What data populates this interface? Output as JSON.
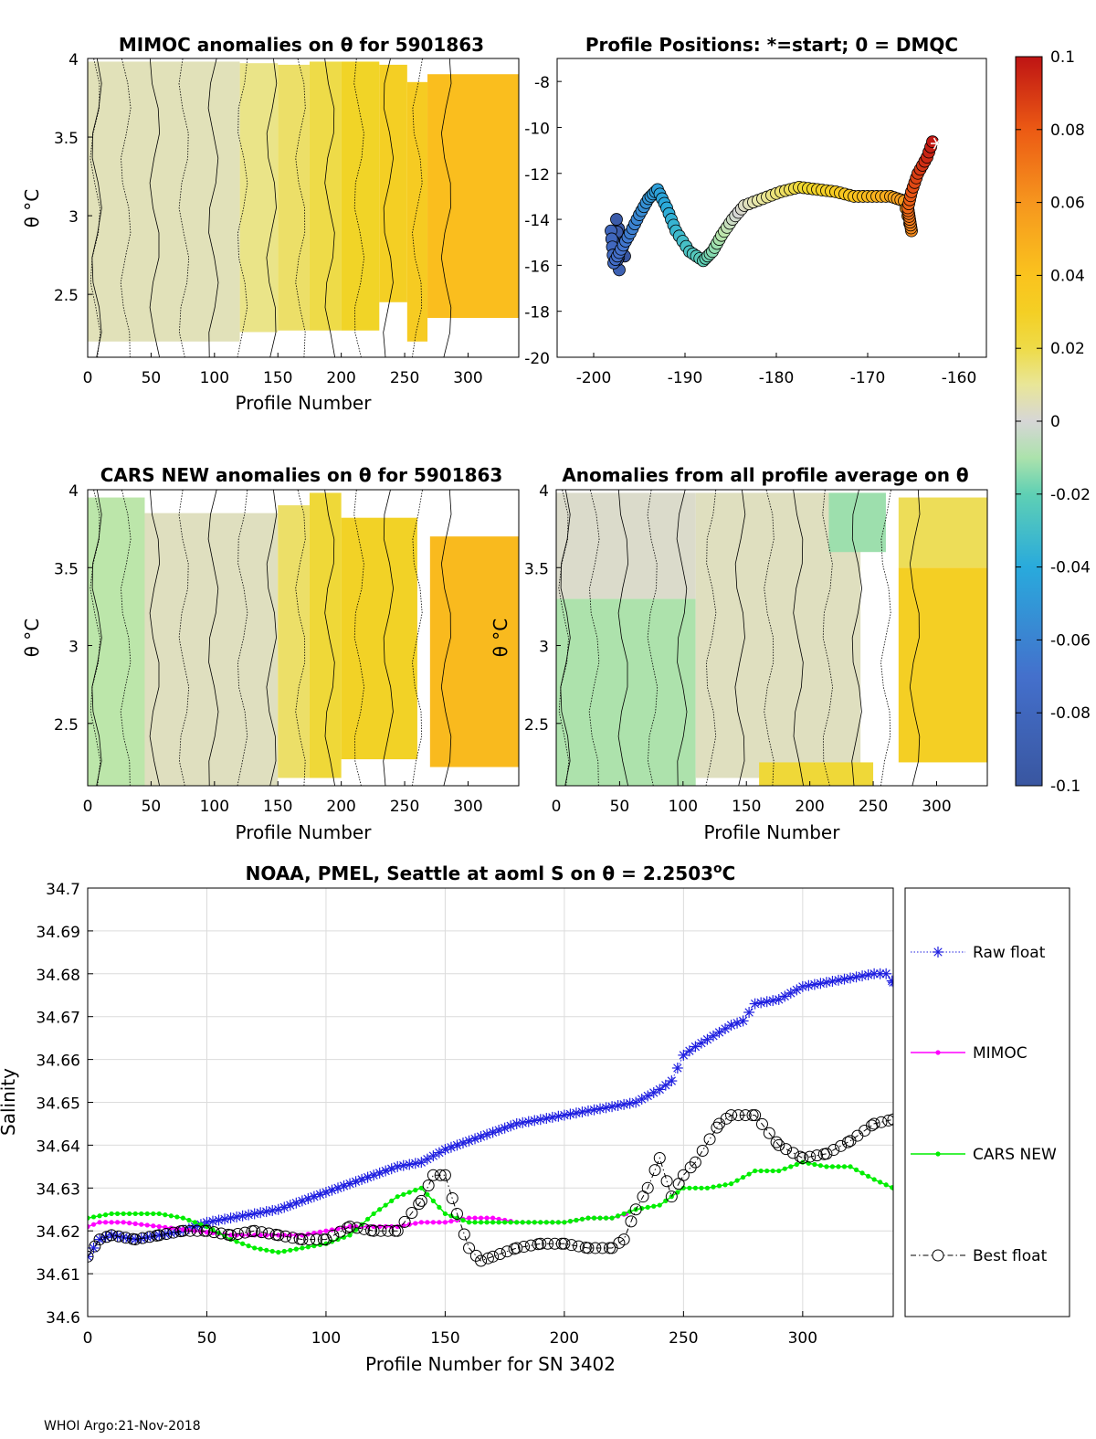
{
  "footer": "WHOI Argo:21-Nov-2018",
  "colors": {
    "raw": "#1f1fe0",
    "mimoc": "#ff00ff",
    "cars": "#00ee00",
    "best": "#000000",
    "grid": "#dcdcdc"
  },
  "chart_data": [
    {
      "id": "mimoc",
      "type": "heatmap",
      "title": "MIMOC anomalies on θ  for 5901863",
      "xlabel": "Profile Number",
      "ylabel": "θ °C",
      "xlim": [
        0,
        340
      ],
      "ylim": [
        2.1,
        4.0
      ],
      "xticks": [
        "0",
        "50",
        "100",
        "150",
        "200",
        "250",
        "300"
      ],
      "yticks": [
        "2.5",
        "3",
        "3.5",
        "4"
      ],
      "bands": [
        {
          "x": [
            0,
            120
          ],
          "ymin": 2.2,
          "ymax": 3.98,
          "value": 0.005
        },
        {
          "x": [
            120,
            150
          ],
          "ymin": 2.26,
          "ymax": 3.97,
          "value": 0.012
        },
        {
          "x": [
            150,
            175
          ],
          "ymin": 2.27,
          "ymax": 3.96,
          "value": 0.016
        },
        {
          "x": [
            175,
            200
          ],
          "ymin": 2.27,
          "ymax": 3.98,
          "value": 0.02
        },
        {
          "x": [
            200,
            230
          ],
          "ymin": 2.27,
          "ymax": 3.98,
          "value": 0.026
        },
        {
          "x": [
            230,
            252
          ],
          "ymin": 2.45,
          "ymax": 3.96,
          "value": 0.03
        },
        {
          "x": [
            252,
            268
          ],
          "ymin": 2.2,
          "ymax": 3.85,
          "value": 0.033
        },
        {
          "x": [
            268,
            340
          ],
          "ymin": 2.35,
          "ymax": 3.9,
          "value": 0.042
        }
      ]
    },
    {
      "id": "positions",
      "type": "scatter",
      "title": "Profile Positions: *=start; 0 = DMQC",
      "xlim": [
        -204,
        -157
      ],
      "ylim": [
        -20,
        -7
      ],
      "xticks": [
        "-200",
        "-190",
        "-180",
        "-170",
        "-160"
      ],
      "yticks": [
        "-8",
        "-10",
        "-12",
        "-14",
        "-16",
        "-18",
        "-20"
      ],
      "track": [
        [
          -162.7,
          -10.4
        ],
        [
          -163.5,
          -11.3
        ],
        [
          -164.5,
          -12.0
        ],
        [
          -165.2,
          -12.8
        ],
        [
          -165.6,
          -13.5
        ],
        [
          -165.4,
          -14.0
        ],
        [
          -165.2,
          -14.5
        ],
        [
          -166.0,
          -13.2
        ],
        [
          -167.5,
          -13.0
        ],
        [
          -169.5,
          -13.0
        ],
        [
          -171.5,
          -13.0
        ],
        [
          -173.5,
          -12.8
        ],
        [
          -175.5,
          -12.7
        ],
        [
          -177.5,
          -12.6
        ],
        [
          -179.5,
          -12.8
        ],
        [
          -181.5,
          -13.1
        ],
        [
          -183.5,
          -13.4
        ],
        [
          -184.8,
          -14.0
        ],
        [
          -186.0,
          -14.7
        ],
        [
          -187.0,
          -15.4
        ],
        [
          -188.0,
          -15.8
        ],
        [
          -189.5,
          -15.4
        ],
        [
          -191.0,
          -14.5
        ],
        [
          -192.0,
          -13.5
        ],
        [
          -193.0,
          -12.7
        ],
        [
          -194.0,
          -13.1
        ],
        [
          -195.0,
          -13.8
        ],
        [
          -196.0,
          -14.6
        ],
        [
          -197.0,
          -15.3
        ],
        [
          -197.8,
          -15.9
        ],
        [
          -198.1,
          -14.5
        ],
        [
          -197.2,
          -16.2
        ],
        [
          -197.5,
          -14.0
        ],
        [
          -196.6,
          -15.6
        ]
      ],
      "start": [
        -162.4,
        -10.7
      ]
    },
    {
      "id": "cars",
      "type": "heatmap",
      "title": "CARS NEW anomalies on θ for 5901863",
      "xlabel": "Profile Number",
      "ylabel": "θ °C",
      "xlim": [
        0,
        340
      ],
      "ylim": [
        2.1,
        4.0
      ],
      "xticks": [
        "0",
        "50",
        "100",
        "150",
        "200",
        "250",
        "300"
      ],
      "yticks": [
        "2.5",
        "3",
        "3.5",
        "4"
      ],
      "bands": [
        {
          "x": [
            0,
            45
          ],
          "ymin": 2.1,
          "ymax": 3.95,
          "value": -0.008
        },
        {
          "x": [
            45,
            150
          ],
          "ymin": 2.1,
          "ymax": 3.85,
          "value": 0.004
        },
        {
          "x": [
            150,
            175
          ],
          "ymin": 2.15,
          "ymax": 3.9,
          "value": 0.016
        },
        {
          "x": [
            175,
            200
          ],
          "ymin": 2.15,
          "ymax": 3.98,
          "value": 0.022
        },
        {
          "x": [
            200,
            260
          ],
          "ymin": 2.27,
          "ymax": 3.82,
          "value": 0.027
        },
        {
          "x": [
            270,
            340
          ],
          "ymin": 2.22,
          "ymax": 3.7,
          "value": 0.044
        }
      ]
    },
    {
      "id": "avg",
      "type": "heatmap",
      "title": "Anomalies from all profile average on θ",
      "xlabel": "Profile Number",
      "xlim": [
        0,
        340
      ],
      "ylim": [
        2.1,
        4.0
      ],
      "xticks": [
        "0",
        "50",
        "100",
        "150",
        "200",
        "250",
        "300"
      ],
      "yticks": [
        "2.5",
        "3",
        "3.5",
        "4"
      ],
      "bands": [
        {
          "x": [
            0,
            110
          ],
          "ymin": 2.1,
          "ymax": 3.3,
          "value": -0.01
        },
        {
          "x": [
            0,
            110
          ],
          "ymin": 3.3,
          "ymax": 3.98,
          "value": 0.002
        },
        {
          "x": [
            110,
            240
          ],
          "ymin": 2.15,
          "ymax": 3.98,
          "value": 0.004
        },
        {
          "x": [
            215,
            260
          ],
          "ymin": 3.6,
          "ymax": 3.98,
          "value": -0.012
        },
        {
          "x": [
            160,
            250
          ],
          "ymin": 2.1,
          "ymax": 2.25,
          "value": 0.022
        },
        {
          "x": [
            270,
            340
          ],
          "ymin": 2.25,
          "ymax": 3.5,
          "value": 0.03
        },
        {
          "x": [
            270,
            340
          ],
          "ymin": 3.5,
          "ymax": 3.95,
          "value": 0.018
        }
      ]
    },
    {
      "id": "colorbar",
      "type": "colorbar",
      "range": [
        -0.1,
        0.1
      ],
      "ticks": [
        "0.1",
        "0.08",
        "0.06",
        "0.04",
        "0.02",
        "0",
        "-0.02",
        "-0.04",
        "-0.06",
        "-0.08",
        "-0.1"
      ]
    },
    {
      "id": "salinity",
      "type": "line",
      "title": "NOAA, PMEL, Seattle at aoml S on θ = 2.2503",
      "title_sup": "o",
      "title_end": "C",
      "xlabel": "Profile Number for SN 3402",
      "ylabel": "Salinity",
      "xlim": [
        0,
        338
      ],
      "ylim": [
        34.6,
        34.7
      ],
      "xticks": [
        "0",
        "50",
        "100",
        "150",
        "200",
        "250",
        "300"
      ],
      "yticks": [
        "34.6",
        "34.61",
        "34.62",
        "34.63",
        "34.64",
        "34.65",
        "34.66",
        "34.67",
        "34.68",
        "34.69",
        "34.7"
      ],
      "series": [
        {
          "name": "Raw float",
          "style": "raw",
          "x": [
            0,
            5,
            10,
            20,
            30,
            40,
            50,
            60,
            70,
            80,
            90,
            100,
            110,
            120,
            130,
            140,
            150,
            160,
            170,
            180,
            190,
            200,
            210,
            220,
            230,
            240,
            245,
            250,
            255,
            270,
            275,
            280,
            290,
            300,
            310,
            320,
            330,
            335,
            338
          ],
          "y": [
            34.614,
            34.618,
            34.619,
            34.618,
            34.619,
            34.62,
            34.622,
            34.623,
            34.624,
            34.625,
            34.627,
            34.629,
            34.631,
            34.633,
            34.635,
            34.636,
            34.639,
            34.641,
            34.643,
            34.645,
            34.646,
            34.647,
            34.648,
            34.649,
            34.65,
            34.653,
            34.655,
            34.661,
            34.663,
            34.668,
            34.669,
            34.673,
            34.674,
            34.677,
            34.678,
            34.679,
            34.68,
            34.68,
            34.678
          ]
        },
        {
          "name": "MIMOC",
          "style": "mimoc",
          "x": [
            0,
            5,
            15,
            30,
            45,
            60,
            75,
            90,
            100,
            110,
            120,
            130,
            140,
            150,
            160,
            170,
            180,
            190,
            200,
            210,
            220,
            226
          ],
          "y": [
            34.621,
            34.622,
            34.622,
            34.621,
            34.62,
            34.619,
            34.619,
            34.619,
            34.62,
            34.621,
            34.621,
            34.621,
            34.622,
            34.622,
            34.623,
            34.623,
            34.622,
            34.622,
            34.622,
            34.623,
            34.623,
            34.624
          ]
        },
        {
          "name": "CARS NEW",
          "style": "cars",
          "x": [
            0,
            10,
            20,
            30,
            40,
            50,
            60,
            70,
            80,
            90,
            100,
            110,
            120,
            130,
            140,
            150,
            160,
            170,
            180,
            190,
            200,
            210,
            220,
            230,
            240,
            250,
            260,
            270,
            280,
            290,
            300,
            310,
            320,
            330,
            338
          ],
          "y": [
            34.623,
            34.624,
            34.624,
            34.624,
            34.623,
            34.621,
            34.618,
            34.616,
            34.615,
            34.616,
            34.617,
            34.619,
            34.624,
            34.628,
            34.63,
            34.624,
            34.622,
            34.622,
            34.622,
            34.622,
            34.622,
            34.623,
            34.623,
            34.625,
            34.626,
            34.63,
            34.63,
            34.631,
            34.634,
            34.634,
            34.636,
            34.635,
            34.635,
            34.632,
            34.63
          ]
        },
        {
          "name": "Best float",
          "style": "best",
          "x": [
            0,
            5,
            10,
            20,
            30,
            40,
            50,
            60,
            70,
            80,
            90,
            100,
            110,
            120,
            130,
            140,
            145,
            150,
            155,
            160,
            165,
            170,
            180,
            190,
            200,
            210,
            220,
            225,
            230,
            235,
            240,
            245,
            250,
            255,
            265,
            270,
            280,
            290,
            300,
            310,
            320,
            330,
            338
          ],
          "y": [
            34.614,
            34.618,
            34.619,
            34.618,
            34.619,
            34.62,
            34.62,
            34.619,
            34.62,
            34.619,
            34.618,
            34.618,
            34.621,
            34.62,
            34.62,
            34.627,
            34.633,
            34.633,
            34.624,
            34.616,
            34.613,
            34.614,
            34.616,
            34.617,
            34.617,
            34.616,
            34.616,
            34.618,
            34.625,
            34.63,
            34.637,
            34.628,
            34.633,
            34.636,
            34.645,
            34.647,
            34.647,
            34.64,
            34.637,
            34.638,
            34.641,
            34.645,
            34.646
          ]
        }
      ]
    }
  ]
}
